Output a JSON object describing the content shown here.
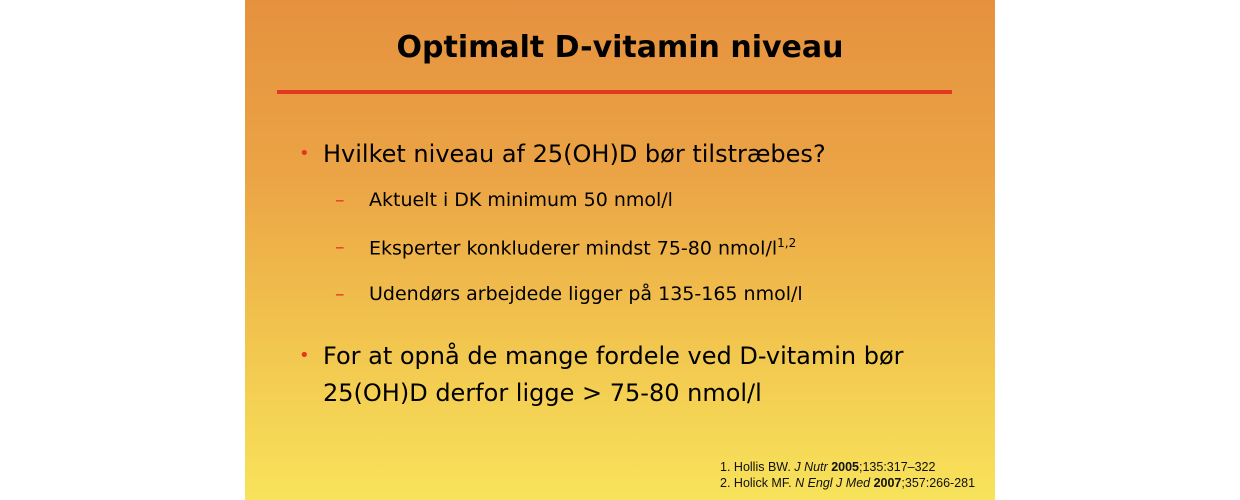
{
  "slide": {
    "title": "Optimalt D-vitamin niveau",
    "accent_color": "#e2381f",
    "bullets": [
      {
        "text": "Hvilket niveau af 25(OH)D bør tilstræbes?",
        "sub": [
          {
            "text": "Aktuelt i DK minimum 50 nmol/l",
            "sup": ""
          },
          {
            "text": "Eksperter konkluderer mindst 75-80 nmol/l",
            "sup": "1,2"
          },
          {
            "text": "Udendørs arbejdede ligger på 135-165 nmol/l",
            "sup": ""
          }
        ]
      },
      {
        "line1": "For at opnå de mange fordele ved D-vitamin bør",
        "line2": "25(OH)D derfor ligge > 75-80 nmol/l"
      }
    ],
    "bullet_marker": "•",
    "dash_marker": "–",
    "references": [
      {
        "num": "1.",
        "author": "Hollis BW.",
        "journal": "J Nutr",
        "year": "2005",
        "rest": ";135:317–322"
      },
      {
        "num": "2.",
        "author": "Holick MF.",
        "journal": "N Engl J Med",
        "year": "2007",
        "rest": ";357:266-281"
      }
    ]
  }
}
